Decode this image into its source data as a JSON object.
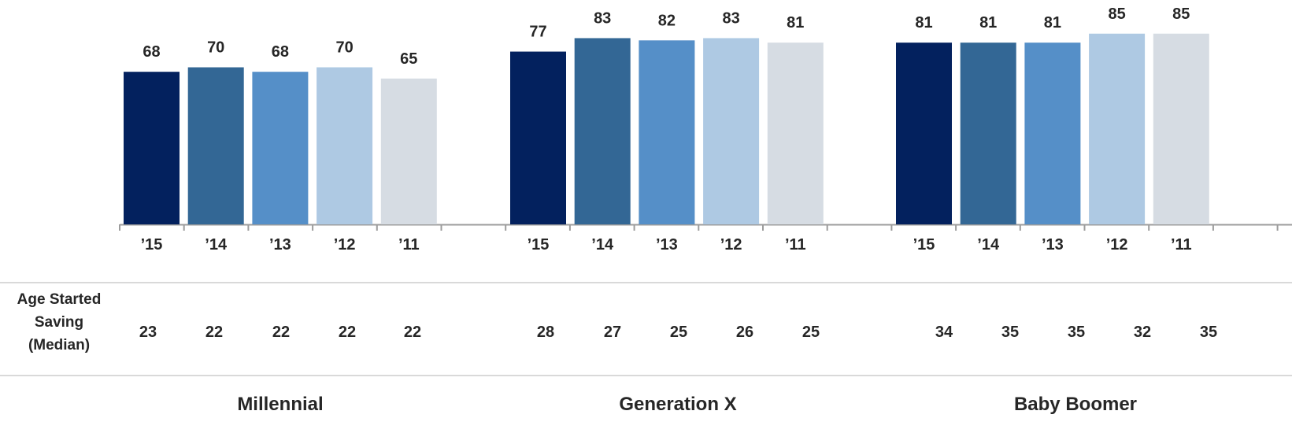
{
  "chart_data": {
    "type": "bar",
    "ylim": [
      0,
      100
    ],
    "grid": false,
    "legend": "none",
    "groups": [
      {
        "name": "Millennial",
        "categories": [
          "’15",
          "’14",
          "’13",
          "’12",
          "’11"
        ],
        "values": [
          68,
          70,
          68,
          70,
          65
        ],
        "age_started_saving": [
          "23",
          "22",
          "22",
          "22",
          "22"
        ]
      },
      {
        "name": "Generation X",
        "categories": [
          "’15",
          "’14",
          "’13",
          "’12",
          "’11"
        ],
        "values": [
          77,
          83,
          82,
          83,
          81
        ],
        "age_started_saving": [
          "28",
          "27",
          "25",
          "26",
          "25"
        ]
      },
      {
        "name": "Baby Boomer",
        "categories": [
          "’15",
          "’14",
          "’13",
          "’12",
          "’11"
        ],
        "values": [
          81,
          81,
          81,
          85,
          85
        ],
        "age_started_saving": [
          "34",
          "35",
          "35",
          "32",
          "35"
        ]
      }
    ],
    "series_colors": [
      "#03215e",
      "#336795",
      "#558fc8",
      "#aec9e3",
      "#d6dce3"
    ],
    "row_label": [
      "Age Started",
      "Saving",
      "(Median)"
    ],
    "text_color": "#262626",
    "axis_color": "#9c9c9c",
    "separator_color": "#d9d9d9"
  }
}
